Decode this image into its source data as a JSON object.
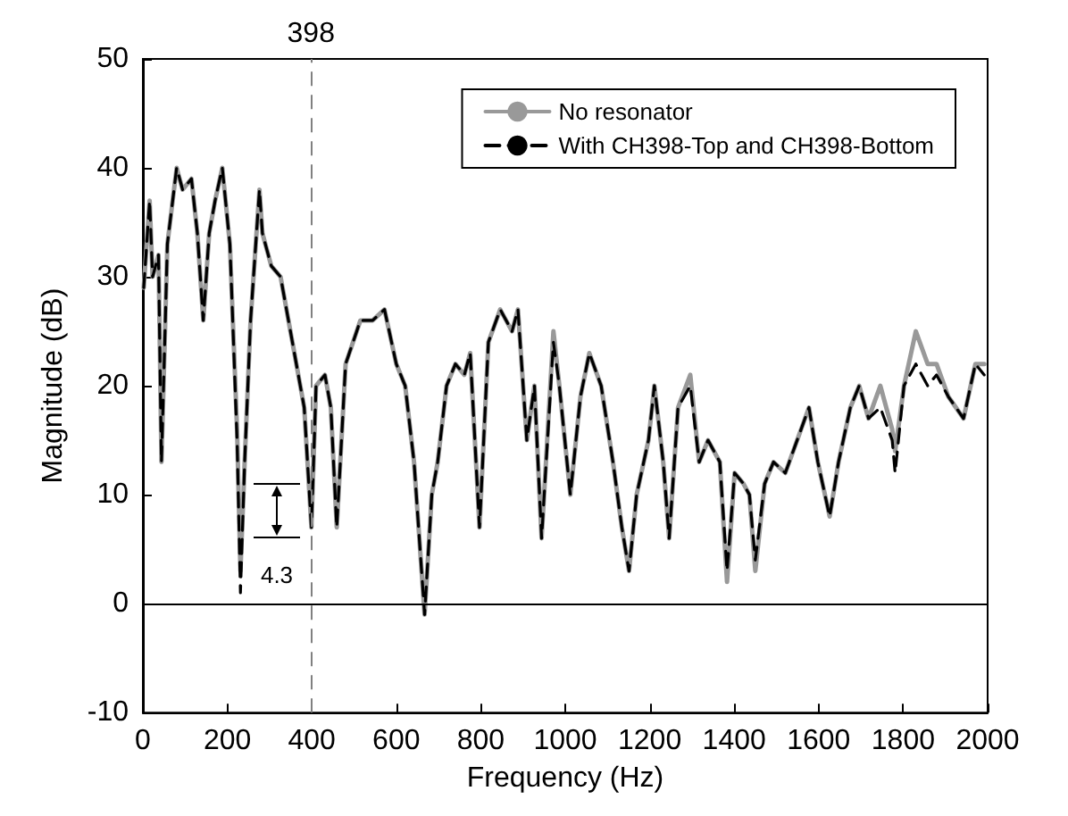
{
  "chart_data": {
    "type": "line",
    "xlabel": "Frequency (Hz)",
    "ylabel": "Magnitude (dB)",
    "x": [
      2,
      16,
      23,
      37,
      44,
      58,
      80,
      94,
      115,
      129,
      143,
      157,
      171,
      188,
      206,
      223,
      231,
      241,
      255,
      276,
      283,
      304,
      326,
      354,
      382,
      399,
      410,
      431,
      445,
      459,
      480,
      515,
      544,
      572,
      600,
      621,
      642,
      667,
      684,
      698,
      719,
      740,
      761,
      775,
      797,
      818,
      846,
      874,
      888,
      909,
      927,
      944,
      972,
      986,
      1012,
      1036,
      1057,
      1085,
      1113,
      1134,
      1151,
      1169,
      1197,
      1211,
      1232,
      1246,
      1267,
      1296,
      1317,
      1338,
      1366,
      1383,
      1401,
      1422,
      1436,
      1450,
      1472,
      1493,
      1521,
      1549,
      1577,
      1598,
      1626,
      1647,
      1675,
      1696,
      1718,
      1746,
      1774,
      1781,
      1802,
      1830,
      1858,
      1879,
      1907,
      1943,
      1971,
      1992
    ],
    "series": [
      {
        "name": "No resonator",
        "color": "#999999",
        "line_style": "solid",
        "values": [
          29,
          37,
          30,
          32,
          13,
          33,
          40,
          38,
          39,
          34,
          26,
          34,
          37,
          40,
          33,
          16,
          3,
          13,
          26,
          38,
          34,
          31,
          30,
          24,
          18,
          7,
          20,
          21,
          18,
          7,
          22,
          26,
          26,
          27,
          22,
          20,
          13,
          -1,
          10,
          13,
          20,
          22,
          21,
          23,
          7,
          24,
          27,
          25,
          27,
          15,
          20,
          6,
          25,
          20,
          10,
          19,
          23,
          20,
          13,
          7,
          3,
          10,
          15,
          20,
          13,
          6,
          18,
          21,
          13,
          15,
          13,
          2,
          12,
          11,
          10,
          3,
          11,
          13,
          12,
          15,
          18,
          13,
          8,
          13,
          18,
          20,
          17,
          20,
          16,
          14,
          20,
          25,
          22,
          22,
          19,
          17,
          22,
          22
        ]
      },
      {
        "name": "With CH398-Top and CH398-Bottom",
        "color": "#000000",
        "line_style": "dashed",
        "values": [
          29,
          37,
          30,
          32,
          13,
          33,
          40,
          38,
          39,
          34,
          26,
          34,
          37,
          40,
          33,
          15,
          1,
          13,
          26,
          38,
          34,
          31,
          30,
          24,
          18,
          7,
          20,
          21,
          18,
          7,
          22,
          26,
          26,
          27,
          22,
          20,
          13,
          -1,
          10,
          13,
          20,
          22,
          21,
          23,
          7,
          24,
          27,
          25,
          27,
          15,
          20,
          6,
          24,
          20,
          10,
          19,
          23,
          20,
          13,
          7,
          3,
          10,
          15,
          20,
          13,
          6,
          18,
          20,
          13,
          15,
          13,
          3,
          12,
          11,
          10,
          4,
          11,
          13,
          12,
          15,
          18,
          13,
          8,
          13,
          18,
          20,
          17,
          18,
          15,
          12,
          20,
          22,
          20,
          21,
          19,
          17,
          22,
          21
        ]
      }
    ],
    "xlim": [
      0,
      2000
    ],
    "xticks": [
      0,
      200,
      400,
      600,
      800,
      1000,
      1200,
      1400,
      1600,
      1800,
      2000
    ],
    "ylim": [
      -10,
      50
    ],
    "yticks": [
      -10,
      0,
      10,
      20,
      30,
      40,
      50
    ],
    "grid": false,
    "legend": "top right",
    "marker": "none",
    "ref_lines": [
      {
        "axis": "x",
        "value": 398,
        "label": "398",
        "color": "#808080",
        "line_style": "dashed"
      },
      {
        "axis": "y",
        "value": 0,
        "color": "#000000",
        "line_style": "solid"
      }
    ],
    "annotations": [
      "4.3"
    ]
  }
}
